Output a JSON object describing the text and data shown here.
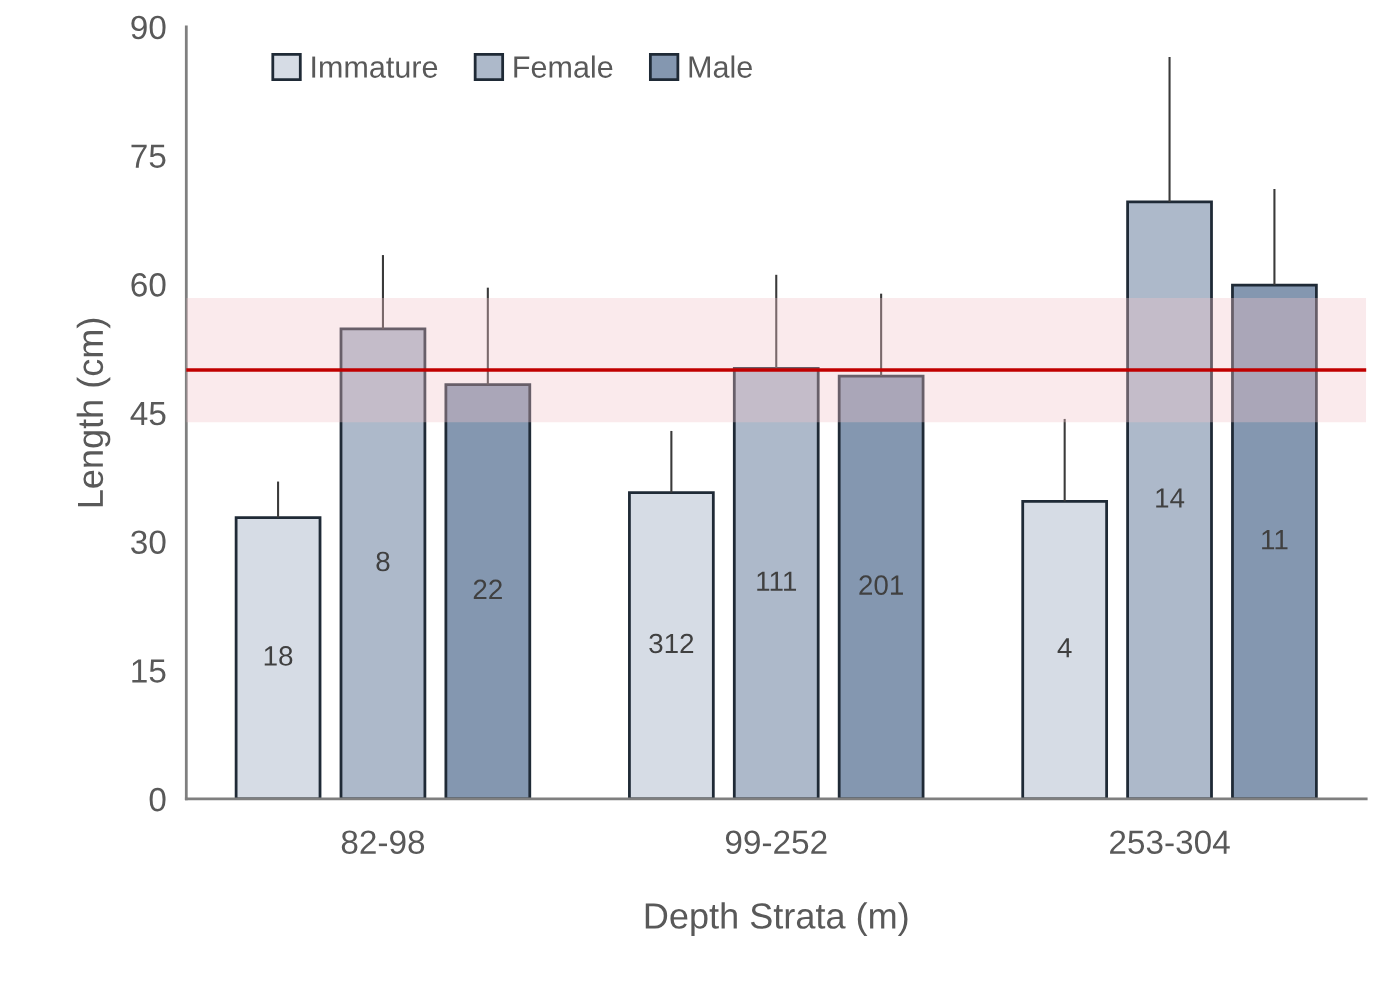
{
  "chart_data": {
    "type": "bar",
    "xlabel": "Depth Strata (m)",
    "ylabel": "Length (cm)",
    "categories": [
      "82-98",
      "99-252",
      "253-304"
    ],
    "series": [
      {
        "name": "Immature",
        "color": "#d6dce5",
        "values": [
          32.8,
          35.7,
          34.7
        ],
        "errors": [
          [
            32.8,
            37.0
          ],
          [
            35.7,
            42.9
          ],
          [
            34.7,
            44.3
          ]
        ]
      },
      {
        "name": "Female",
        "color": "#adb9ca",
        "values": [
          54.8,
          50.2,
          69.6
        ],
        "errors": [
          [
            54.8,
            63.4
          ],
          [
            50.2,
            61.1
          ],
          [
            69.6,
            86.5
          ]
        ]
      },
      {
        "name": "Male",
        "color": "#8497b0",
        "values": [
          48.3,
          49.3,
          59.9
        ],
        "errors": [
          [
            48.3,
            59.6
          ],
          [
            49.3,
            58.9
          ],
          [
            59.9,
            71.1
          ]
        ]
      }
    ],
    "annotations": [
      "18",
      "8",
      "22",
      "312",
      "111",
      "201",
      "4",
      "14",
      "11"
    ],
    "ylim": [
      0,
      90
    ],
    "yticks": [
      0,
      15,
      30,
      45,
      60,
      75,
      90
    ],
    "ref_lines": [
      {
        "axis": "y",
        "value": 50,
        "label": null,
        "color": "#c00000"
      }
    ],
    "bands": [
      {
        "axis": "y",
        "from": 43.9,
        "to": 58.4,
        "label": null,
        "color": "#f2c4c8"
      }
    ],
    "legend": "top left",
    "grid": false
  }
}
